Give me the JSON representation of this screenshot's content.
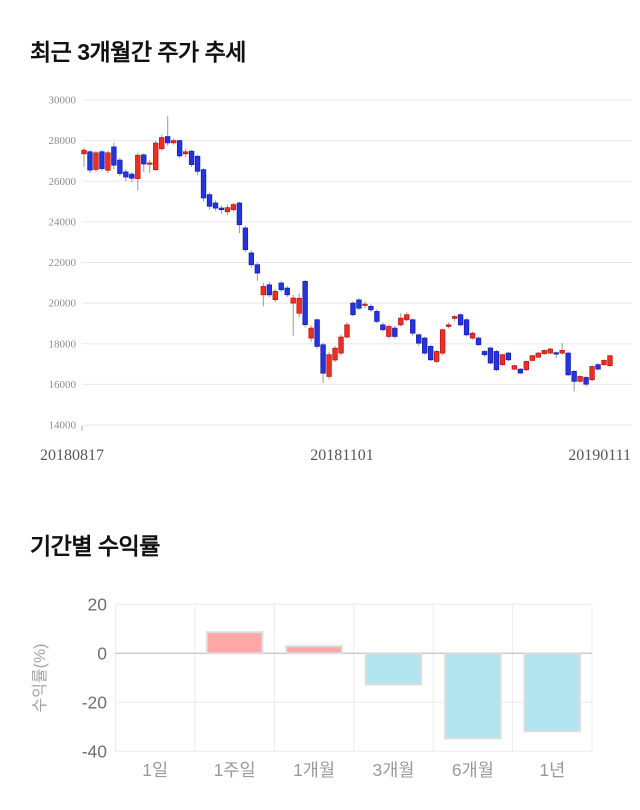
{
  "page": {
    "background": "#ffffff"
  },
  "chart_data": [
    {
      "type": "candlestick",
      "title": "최근 3개월간 주가 추세",
      "ylim": [
        14000,
        30000
      ],
      "y_tick_step": 2000,
      "y_tick_labels": [
        "14000",
        "16000",
        "18000",
        "20000",
        "22000",
        "24000",
        "26000",
        "28000",
        "30000"
      ],
      "x_tick_labels": [
        "20180817",
        "20181101",
        "20190111"
      ],
      "grid": "horizontal",
      "legend": "none",
      "up_color": "#ee2e24",
      "up_border_color": "#bb170f",
      "down_color": "#2733dd",
      "down_border_color": "#141fb0",
      "wick_color": "#999999",
      "grid_color": "#e8e8e8",
      "y_label_color": "#8c8c8c",
      "x_label_color": "#565656",
      "ohlc": [
        [
          27350,
          27650,
          26700,
          27530
        ],
        [
          27450,
          27550,
          26400,
          26550
        ],
        [
          26580,
          27500,
          26450,
          27400
        ],
        [
          27450,
          27550,
          26500,
          26620
        ],
        [
          26540,
          27500,
          26400,
          27400
        ],
        [
          27690,
          27890,
          26600,
          26790
        ],
        [
          27040,
          27150,
          26250,
          26380
        ],
        [
          26460,
          26600,
          26000,
          26210
        ],
        [
          26350,
          26450,
          25950,
          26150
        ],
        [
          26130,
          27400,
          25560,
          27280
        ],
        [
          27300,
          27380,
          26450,
          26850
        ],
        [
          26850,
          27050,
          26400,
          26900
        ],
        [
          26570,
          28000,
          26500,
          27880
        ],
        [
          27600,
          28300,
          27500,
          28150
        ],
        [
          28200,
          29200,
          27750,
          27890
        ],
        [
          27890,
          28100,
          27800,
          28000
        ],
        [
          28000,
          28050,
          27150,
          27250
        ],
        [
          27350,
          27600,
          27200,
          27450
        ],
        [
          27480,
          27550,
          26700,
          26820
        ],
        [
          27230,
          27300,
          26300,
          26490
        ],
        [
          26570,
          26650,
          25000,
          25180
        ],
        [
          25340,
          25450,
          24600,
          24770
        ],
        [
          24930,
          25050,
          24550,
          24680
        ],
        [
          24680,
          24800,
          24400,
          24600
        ],
        [
          24500,
          24850,
          24350,
          24700
        ],
        [
          24600,
          24950,
          24500,
          24850
        ],
        [
          24930,
          25000,
          23450,
          23860
        ],
        [
          23700,
          23800,
          22500,
          22630
        ],
        [
          22470,
          22600,
          21750,
          21890
        ],
        [
          21890,
          22000,
          21100,
          21480
        ],
        [
          20410,
          21000,
          19840,
          20820
        ],
        [
          20900,
          21050,
          20300,
          20410
        ],
        [
          20170,
          20700,
          20050,
          20580
        ],
        [
          20990,
          21100,
          20550,
          20660
        ],
        [
          20740,
          20850,
          20300,
          20410
        ],
        [
          20000,
          20400,
          18400,
          20250
        ],
        [
          19500,
          20490,
          19300,
          20240
        ],
        [
          21070,
          21150,
          18800,
          18940
        ],
        [
          18280,
          18900,
          18100,
          18770
        ],
        [
          19180,
          19250,
          17750,
          17870
        ],
        [
          17950,
          18050,
          16060,
          16550
        ],
        [
          16390,
          17600,
          16250,
          17460
        ],
        [
          17200,
          17900,
          17100,
          17780
        ],
        [
          17540,
          18450,
          17450,
          18330
        ],
        [
          18330,
          19050,
          18250,
          18930
        ],
        [
          20000,
          20100,
          19350,
          19430
        ],
        [
          20160,
          20240,
          19650,
          19750
        ],
        [
          19900,
          20080,
          19750,
          19950
        ],
        [
          19840,
          19950,
          19550,
          19670
        ],
        [
          19590,
          19700,
          19000,
          19100
        ],
        [
          18930,
          19050,
          18600,
          18690
        ],
        [
          18360,
          18950,
          18250,
          18850
        ],
        [
          18770,
          18870,
          18250,
          18360
        ],
        [
          18930,
          19500,
          18850,
          19260
        ],
        [
          19180,
          19550,
          19100,
          19430
        ],
        [
          19180,
          19250,
          18400,
          18520
        ],
        [
          18440,
          18500,
          17900,
          18030
        ],
        [
          18280,
          18350,
          17450,
          17540
        ],
        [
          17870,
          17950,
          17150,
          17210
        ],
        [
          17130,
          17700,
          17050,
          17620
        ],
        [
          17540,
          18750,
          17450,
          18690
        ],
        [
          18850,
          19050,
          18750,
          18930
        ],
        [
          19250,
          19400,
          19100,
          19340
        ],
        [
          19430,
          19500,
          18850,
          18930
        ],
        [
          19180,
          19250,
          18350,
          18440
        ],
        [
          18280,
          18600,
          18200,
          18520
        ],
        [
          18280,
          18350,
          17900,
          17950
        ],
        [
          17620,
          17700,
          17350,
          17460
        ],
        [
          17790,
          17850,
          17000,
          17050
        ],
        [
          17620,
          17700,
          16650,
          16720
        ],
        [
          16970,
          17520,
          16880,
          17460
        ],
        [
          17540,
          17600,
          17150,
          17210
        ],
        [
          16750,
          16970,
          16700,
          16920
        ],
        [
          16750,
          16800,
          16500,
          16560
        ],
        [
          16720,
          17180,
          16650,
          17130
        ],
        [
          17180,
          17460,
          17130,
          17410
        ],
        [
          17340,
          17590,
          17300,
          17540
        ],
        [
          17510,
          17720,
          17460,
          17670
        ],
        [
          17540,
          17790,
          17490,
          17740
        ],
        [
          17560,
          17620,
          17290,
          17490
        ],
        [
          17540,
          18030,
          17460,
          17670
        ],
        [
          17540,
          17620,
          16400,
          16470
        ],
        [
          16640,
          16700,
          15650,
          16150
        ],
        [
          16150,
          16440,
          16100,
          16390
        ],
        [
          16340,
          16400,
          15900,
          16010
        ],
        [
          16230,
          16930,
          16150,
          16880
        ],
        [
          16970,
          17030,
          16700,
          16750
        ],
        [
          16970,
          17230,
          16920,
          17180
        ],
        [
          16920,
          17450,
          16860,
          17410
        ]
      ]
    },
    {
      "type": "bar",
      "title": "기간별 수익률",
      "ylabel": "수익률(%)",
      "ylim": [
        -40,
        20
      ],
      "y_ticks": [
        20,
        0,
        -20,
        -40
      ],
      "categories": [
        "1일",
        "1주일",
        "1개월",
        "3개월",
        "6개월",
        "1년"
      ],
      "values": [
        0,
        8.6,
        2.9,
        -12.7,
        -34.7,
        -31.8
      ],
      "grid": "both",
      "legend": "none",
      "positive_color": "#ffa7a7",
      "negative_color": "#b3e5f0",
      "bar_border_color": "#dddddd",
      "zero_line_color": "#c8c8c8",
      "grid_color": "#ececec",
      "tick_label_color": "#6e6e6e",
      "category_label_color": "#999999",
      "ylabel_color": "#a3a3a3"
    }
  ]
}
